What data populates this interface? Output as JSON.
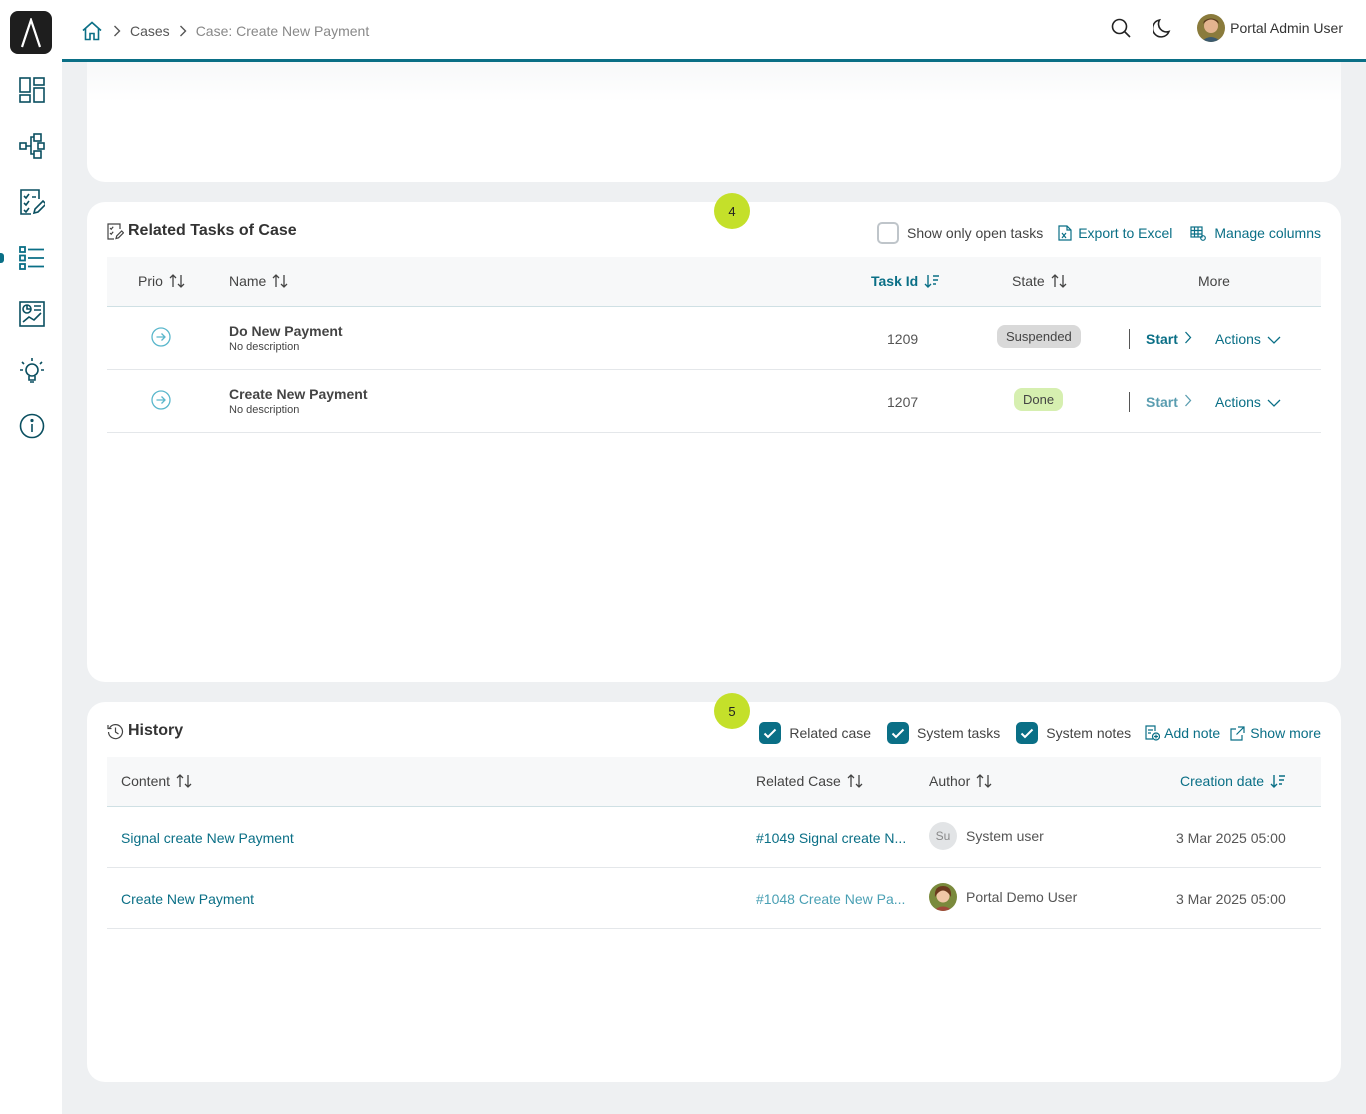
{
  "breadcrumb": {
    "items": [
      "Cases"
    ],
    "current": "Case: Create New Payment"
  },
  "header": {
    "user_name": "Portal Admin User"
  },
  "colors": {
    "accent": "#0a6f86",
    "badge": "#c4e02a",
    "suspended": "#d9d9d9",
    "done": "#d6efb0"
  },
  "sidebar": {
    "items": [
      {
        "icon": "dashboard-icon"
      },
      {
        "icon": "process-icon"
      },
      {
        "icon": "tasks-icon"
      },
      {
        "icon": "cases-icon",
        "active": true
      },
      {
        "icon": "statistics-icon"
      },
      {
        "icon": "ideas-icon"
      },
      {
        "icon": "info-icon"
      }
    ]
  },
  "tasks": {
    "step": "4",
    "title": "Related Tasks of Case",
    "show_open_label": "Show only open tasks",
    "export_label": "Export to Excel",
    "manage_label": "Manage columns",
    "columns": {
      "prio": "Prio",
      "name": "Name",
      "task_id": "Task Id",
      "state": "State",
      "more": "More"
    },
    "rows": [
      {
        "name": "Do New Payment",
        "desc": "No description",
        "id": "1209",
        "state": "Suspended",
        "start": "Start",
        "actions": "Actions"
      },
      {
        "name": "Create New Payment",
        "desc": "No description",
        "id": "1207",
        "state": "Done",
        "start": "Start",
        "actions": "Actions"
      }
    ]
  },
  "history": {
    "step": "5",
    "title": "History",
    "filters": {
      "related_case": "Related case",
      "system_tasks": "System tasks",
      "system_notes": "System notes"
    },
    "add_note_label": "Add note",
    "show_more_label": "Show more",
    "columns": {
      "content": "Content",
      "related_case": "Related Case",
      "author": "Author",
      "creation_date": "Creation date"
    },
    "rows": [
      {
        "content": "Signal create New Payment",
        "related_case": "#1049 Signal create N...",
        "author_initials": "Su",
        "author": "System user",
        "date": "3 Mar 2025 05:00"
      },
      {
        "content": "Create New Payment",
        "related_case": "#1048 Create New Pa...",
        "author": "Portal Demo User",
        "date": "3 Mar 2025 05:00"
      }
    ]
  }
}
